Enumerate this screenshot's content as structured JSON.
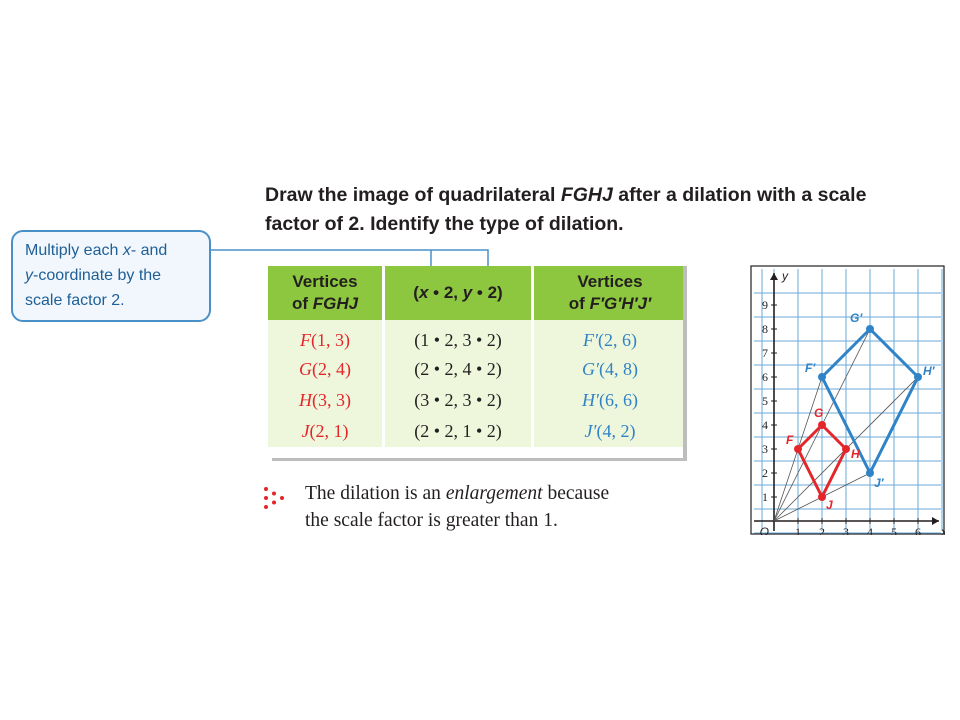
{
  "problem": {
    "line1_pre": "Draw the image of quadrilateral ",
    "line1_name": "FGHJ",
    "line1_post": " after a dilation with a scale",
    "line2": "factor of 2. Identify the type of dilation."
  },
  "callout": {
    "line1_pre": "Multiply each ",
    "line1_x": "x",
    "line1_post": "- and",
    "line2_y": "y",
    "line2_post": "-coordinate by the",
    "line3": "scale factor 2."
  },
  "table": {
    "headers": {
      "col1_line1": "Vertices",
      "col1_line2_pre": "of ",
      "col1_line2_name": "FGHJ",
      "col2_open": "(",
      "col2_x": "x",
      "col2_mid": " • 2, ",
      "col2_y": "y",
      "col2_end": " • 2)",
      "col3_line1": "Vertices",
      "col3_line2_pre": "of ",
      "col3_line2_name": "F′G′H′J′"
    },
    "rows": [
      {
        "orig_name": "F",
        "orig_coord": "(1, 3)",
        "calc": "(1 • 2, 3 • 2)",
        "image_name": "F′",
        "image_coord": "(2, 6)"
      },
      {
        "orig_name": "G",
        "orig_coord": "(2, 4)",
        "calc": "(2 • 2, 4 • 2)",
        "image_name": "G′",
        "image_coord": "(4, 8)"
      },
      {
        "orig_name": "H",
        "orig_coord": "(3, 3)",
        "calc": "(3 • 2, 3 • 2)",
        "image_name": "H′",
        "image_coord": "(6, 6)"
      },
      {
        "orig_name": "J",
        "orig_coord": "(2, 1)",
        "calc": "(2 • 2, 1 • 2)",
        "image_name": "J′",
        "image_coord": "(4, 2)"
      }
    ]
  },
  "conclusion": {
    "line1_pre": "The dilation is an ",
    "line1_term": "enlargement",
    "line1_post": " because",
    "line2": "the scale factor is greater than 1."
  },
  "graph": {
    "origin_label": "O",
    "x_axis_label": "x",
    "y_axis_label": "y",
    "x_ticks": [
      "1",
      "2",
      "3",
      "4",
      "5",
      "6"
    ],
    "y_ticks": [
      "1",
      "2",
      "3",
      "4",
      "5",
      "6",
      "7",
      "8",
      "9"
    ],
    "colors": {
      "original": "#e4262b",
      "image": "#2f83c6",
      "grid": "#6aaad8",
      "rays": "#555555"
    },
    "original": [
      {
        "label": "F",
        "x": 1,
        "y": 3
      },
      {
        "label": "G",
        "x": 2,
        "y": 4
      },
      {
        "label": "H",
        "x": 3,
        "y": 3
      },
      {
        "label": "J",
        "x": 2,
        "y": 1
      }
    ],
    "image": [
      {
        "label": "F′",
        "x": 2,
        "y": 6
      },
      {
        "label": "G′",
        "x": 4,
        "y": 8
      },
      {
        "label": "H′",
        "x": 6,
        "y": 6
      },
      {
        "label": "J′",
        "x": 4,
        "y": 2
      }
    ]
  }
}
